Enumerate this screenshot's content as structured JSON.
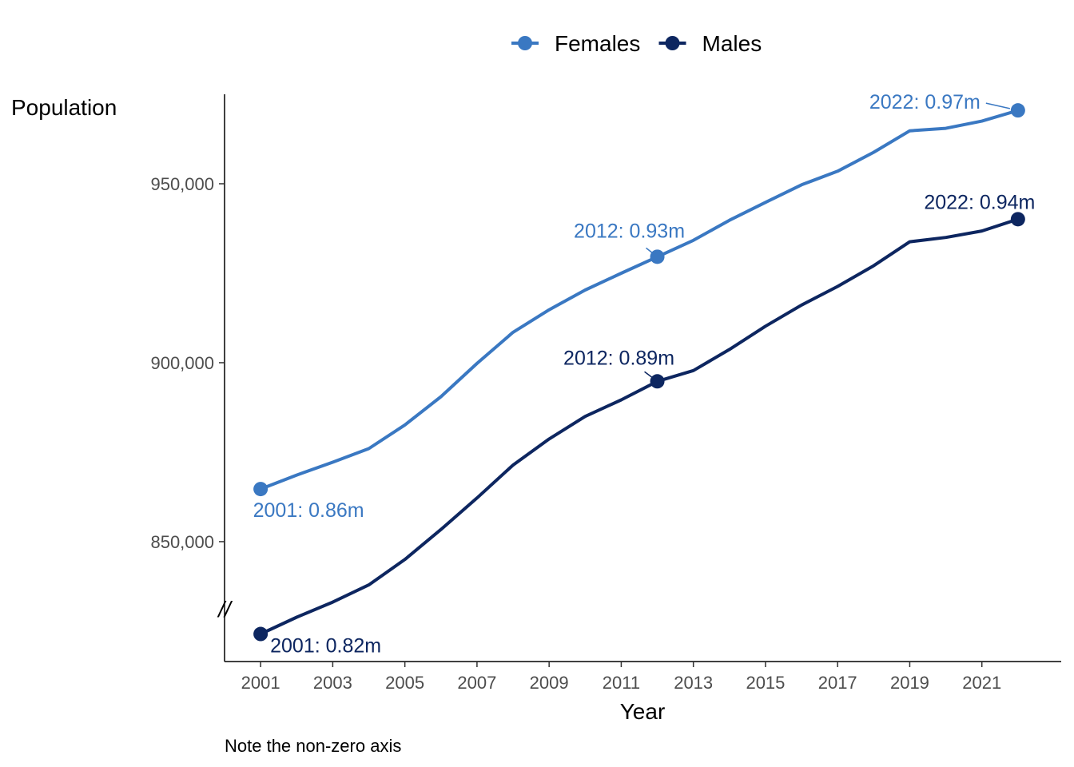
{
  "chart_data": {
    "type": "line",
    "x": [
      2001,
      2002,
      2003,
      2004,
      2005,
      2006,
      2007,
      2008,
      2009,
      2010,
      2011,
      2012,
      2013,
      2014,
      2015,
      2016,
      2017,
      2018,
      2019,
      2020,
      2021,
      2022
    ],
    "series": [
      {
        "name": "Females",
        "color": "#3a78c2",
        "values": [
          864700,
          868600,
          872200,
          876000,
          882600,
          890500,
          899800,
          908500,
          914800,
          920300,
          925000,
          929600,
          934200,
          939800,
          944800,
          949700,
          953500,
          958800,
          964800,
          965500,
          967500,
          970500
        ]
      },
      {
        "name": "Males",
        "color": "#0d2660",
        "values": [
          824200,
          828900,
          833100,
          837900,
          845000,
          853400,
          862200,
          871400,
          878700,
          885000,
          889600,
          894800,
          897800,
          903700,
          910200,
          916100,
          921300,
          927100,
          933800,
          935000,
          936800,
          940100
        ]
      }
    ],
    "annotations": [
      {
        "series": "Females",
        "x": 2001,
        "text": "2001: 0.86m"
      },
      {
        "series": "Females",
        "x": 2012,
        "text": "2012: 0.93m"
      },
      {
        "series": "Females",
        "x": 2022,
        "text": "2022: 0.97m"
      },
      {
        "series": "Males",
        "x": 2001,
        "text": "2001: 0.82m"
      },
      {
        "series": "Males",
        "x": 2012,
        "text": "2012: 0.89m"
      },
      {
        "series": "Males",
        "x": 2022,
        "text": "2022: 0.94m"
      }
    ],
    "xlabel": "Year",
    "ylabel": "Population",
    "xticks": [
      2001,
      2003,
      2005,
      2007,
      2009,
      2011,
      2013,
      2015,
      2017,
      2019,
      2021
    ],
    "yticks": [
      850000,
      900000,
      950000
    ],
    "ytick_labels": [
      "850,000",
      "900,000",
      "950,000"
    ],
    "xlim": [
      2000,
      2023.2
    ],
    "ylim": [
      816500,
      975000
    ],
    "grid": false,
    "legend_position": "top",
    "axis_break_marker": "//",
    "caption": "Note the non-zero axis"
  }
}
